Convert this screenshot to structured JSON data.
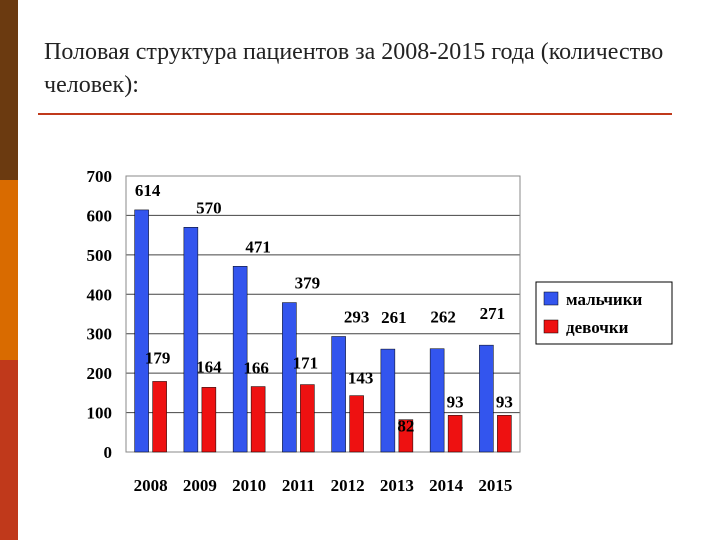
{
  "slide": {
    "title": "Половая структура пациентов за 2008-2015 года (количество человек):"
  },
  "colors": {
    "boys": "#3355ee",
    "girls": "#ee1111",
    "accent_dark": "#6b3a10",
    "accent_orange": "#d96b00",
    "accent_red": "#c0391b"
  },
  "chart_data": {
    "type": "bar",
    "title": "",
    "xlabel": "",
    "ylabel": "",
    "categories": [
      "2008",
      "2009",
      "2010",
      "2011",
      "2012",
      "2013",
      "2014",
      "2015"
    ],
    "series": [
      {
        "name": "мальчики",
        "values": [
          614,
          570,
          471,
          379,
          293,
          261,
          262,
          271
        ],
        "color": "#3355ee"
      },
      {
        "name": "девочки",
        "values": [
          179,
          164,
          166,
          171,
          143,
          82,
          93,
          93
        ],
        "color": "#ee1111"
      }
    ],
    "ylim": [
      0,
      700
    ],
    "yticks": [
      0,
      100,
      200,
      300,
      400,
      500,
      600,
      700
    ],
    "grid": true,
    "legend": "right"
  }
}
